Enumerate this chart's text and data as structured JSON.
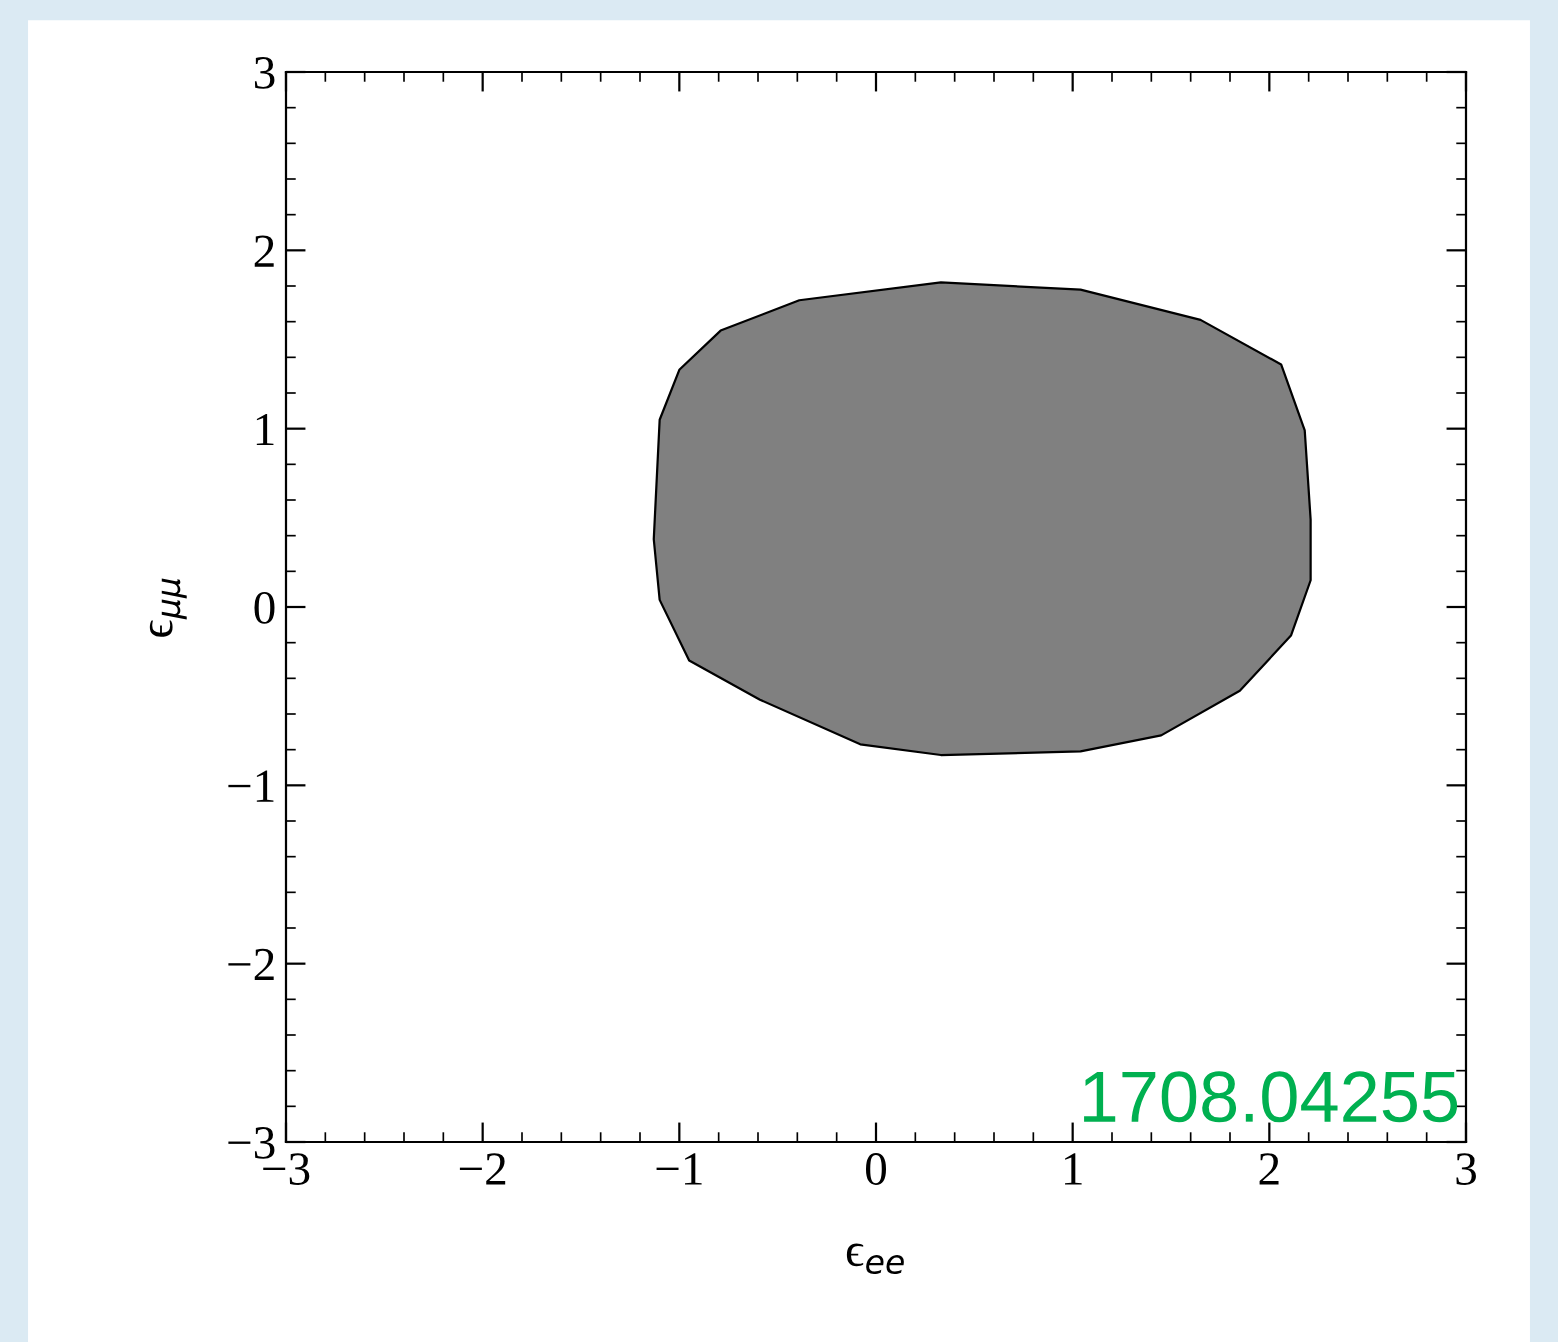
{
  "chart_data": {
    "type": "area",
    "xlabel": "ϵ$_{ee}$",
    "ylabel": "ϵ$_{μμ}$",
    "series": [
      {
        "color": "#808080",
        "x": [
          0.33,
          1.04,
          1.65,
          2.06,
          2.18,
          2.21,
          2.21,
          2.11,
          1.85,
          1.45,
          1.04,
          0.33,
          -0.08,
          -0.59,
          -0.95,
          -1.1,
          -1.13,
          -1.1,
          -1.0,
          -0.79,
          -0.39,
          0.33
        ],
        "values": [
          1.82,
          1.78,
          1.61,
          1.36,
          0.99,
          0.49,
          0.15,
          -0.16,
          -0.47,
          -0.72,
          -0.81,
          -0.83,
          -0.77,
          -0.52,
          -0.3,
          0.04,
          0.38,
          1.05,
          1.33,
          1.55,
          1.72,
          1.82
        ]
      }
    ],
    "xlim": [
      -3,
      3
    ],
    "ylim": [
      -3,
      3
    ],
    "xticks": [
      {
        "value": -3,
        "label": "−3"
      },
      {
        "value": -2,
        "label": "−2"
      },
      {
        "value": -1,
        "label": "−1"
      },
      0,
      1,
      2,
      3
    ],
    "yticks": [
      {
        "value": -3,
        "label": "−3"
      },
      {
        "value": -2,
        "label": "−2"
      },
      {
        "value": -1,
        "label": "−1"
      },
      0,
      1,
      2,
      3
    ],
    "grid": false,
    "annotations": [
      "1708.04255"
    ]
  }
}
